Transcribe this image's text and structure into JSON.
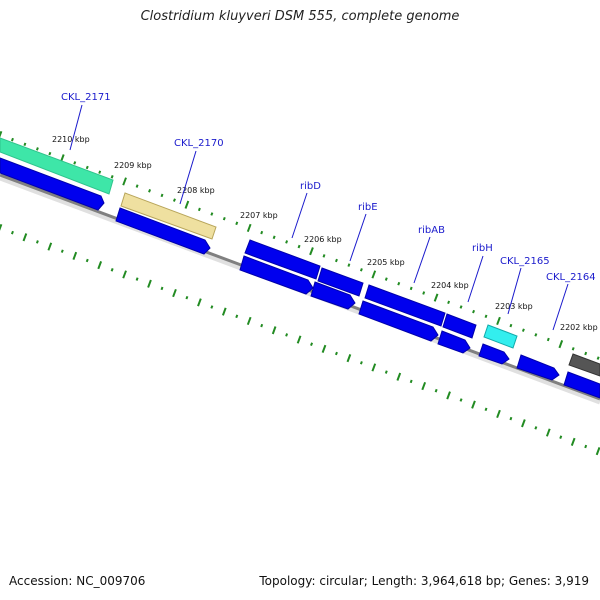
{
  "title": "Clostridium kluyveri DSM 555, complete genome",
  "footer": {
    "accession": "Accession: NC_009706",
    "summary": "Topology: circular; Length: 3,964,618 bp; Genes: 3,919"
  },
  "colors": {
    "background": "#ffffff",
    "backbone": "#808080",
    "tick": "#228b22",
    "cds": "#0000ee",
    "highlight_teal": "#3ee6a8",
    "highlight_khaki": "#efe0a0",
    "highlight_cyan": "#33eeee",
    "highlight_gray": "#555555",
    "label": "#1a1acc"
  },
  "ruler": [
    {
      "label": "2210 kbp"
    },
    {
      "label": "2209 kbp"
    },
    {
      "label": "2208 kbp"
    },
    {
      "label": "2207 kbp"
    },
    {
      "label": "2206 kbp"
    },
    {
      "label": "2205 kbp"
    },
    {
      "label": "2204 kbp"
    },
    {
      "label": "2203 kbp"
    },
    {
      "label": "2202 kbp"
    }
  ],
  "genes": [
    {
      "label": "CKL_2171"
    },
    {
      "label": "CKL_2170"
    },
    {
      "label": "ribD"
    },
    {
      "label": "ribE"
    },
    {
      "label": "ribAB"
    },
    {
      "label": "ribH"
    },
    {
      "label": "CKL_2165"
    },
    {
      "label": "CKL_2164"
    }
  ]
}
